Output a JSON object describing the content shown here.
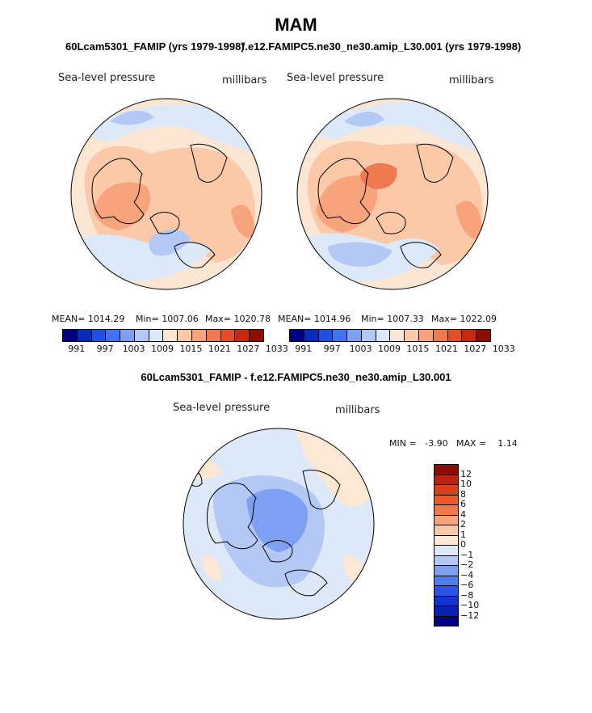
{
  "main_title": "MAM",
  "panels": [
    {
      "case_title": "60Lcam5301_FAMIP (yrs 1979-1998)",
      "variable": "Sea-level pressure",
      "units": "millibars",
      "mean_text": "MEAN= 1014.29",
      "min_text": "Min= 1007.06",
      "max_text": "Max= 1020.78"
    },
    {
      "case_title": "f.e12.FAMIPC5.ne30_ne30.amip_L30.001 (yrs 1979-1998)",
      "variable": "Sea-level pressure",
      "units": "millibars",
      "mean_text": "MEAN= 1014.96",
      "min_text": "Min= 1007.33",
      "max_text": "Max= 1022.09"
    }
  ],
  "abs_colorbar": {
    "colors": [
      "#00007f",
      "#0a2bb5",
      "#1f51e0",
      "#3f74f0",
      "#7ea0f2",
      "#b4c8f5",
      "#dde8f9",
      "#fbe6d4",
      "#fbc8a8",
      "#f7a37c",
      "#f07a50",
      "#e24e25",
      "#c42a10",
      "#8b0e04"
    ],
    "tick_labels": [
      "991",
      "997",
      "1003",
      "1009",
      "1015",
      "1021",
      "1027",
      "1033"
    ]
  },
  "diff_panel": {
    "title": "60Lcam5301_FAMIP - f.e12.FAMIPC5.ne30_ne30.amip_L30.001",
    "variable": "Sea-level pressure",
    "units": "millibars",
    "min_text": "MIN =   -3.90",
    "max_text": "MAX =    1.14"
  },
  "diff_colorbar": {
    "colors": [
      "#8b0e04",
      "#b8250c",
      "#d8401b",
      "#f2562a",
      "#f27a4a",
      "#f7a37c",
      "#fbc8a8",
      "#fde7d5",
      "#dde8f9",
      "#b4c8f5",
      "#7ea0f2",
      "#4f7cf0",
      "#2c55e6",
      "#1235d0",
      "#0a20b0",
      "#00007f"
    ],
    "tick_labels": [
      "12",
      "10",
      "8",
      "6",
      "4",
      "2",
      "1",
      "0",
      "−1",
      "−2",
      "−4",
      "−6",
      "−8",
      "−10",
      "−12"
    ]
  }
}
